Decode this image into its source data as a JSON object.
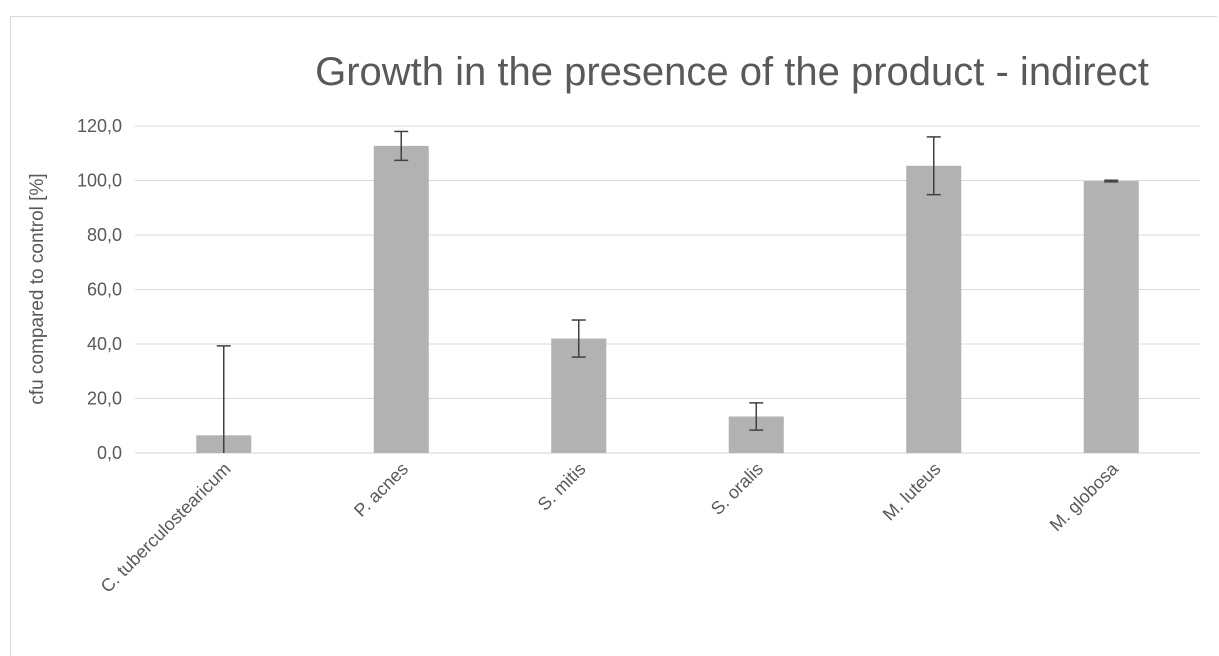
{
  "chart_data": {
    "type": "bar",
    "title": "Growth in the presence of the product - indirect",
    "ylabel": "cfu compared to control [%]",
    "xlabel": "",
    "categories": [
      "C. tuberculostearicum",
      "P. acnes",
      "S. mitis",
      "S. oralis",
      "M. luteus",
      "M. globosa"
    ],
    "values": [
      6.5,
      112.7,
      42.0,
      13.4,
      105.4,
      99.8
    ],
    "error_low": [
      6.5,
      5.3,
      6.8,
      5.0,
      10.6,
      0.3
    ],
    "error_high": [
      32.8,
      5.3,
      6.8,
      5.0,
      10.6,
      0.3
    ],
    "ylim": [
      0,
      120
    ],
    "yticks": [
      "0,0",
      "20,0",
      "40,0",
      "60,0",
      "80,0",
      "100,0",
      "120,0"
    ],
    "grid": true,
    "legend": "none",
    "bar_color": "#b2b2b2",
    "error_color": "#404040",
    "grid_color": "#d9d9d9"
  }
}
